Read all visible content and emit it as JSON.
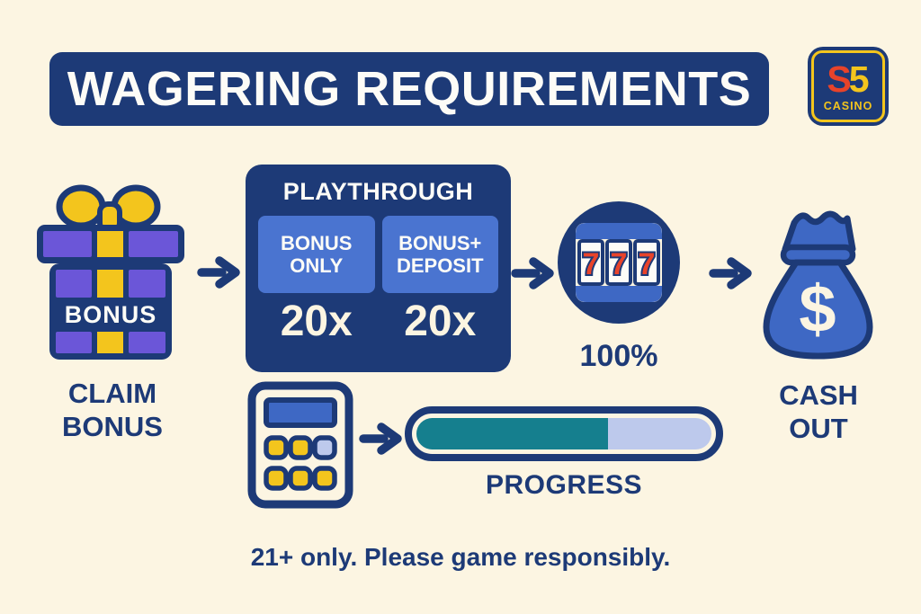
{
  "header": {
    "title": "WAGERING REQUIREMENTS"
  },
  "logo": {
    "s": "S",
    "five": "5",
    "casino": "CASINO"
  },
  "flow": {
    "claim": {
      "gift_label": "BONUS",
      "caption": [
        "CLAIM",
        "BONUS"
      ]
    },
    "playthrough": {
      "title": "PLAYTHROUGH",
      "columns": [
        {
          "header": "BONUS ONLY",
          "value": "20x"
        },
        {
          "header": "BONUS+ DEPOSIT",
          "value": "20x"
        }
      ]
    },
    "slot": {
      "reels": [
        "7",
        "7",
        "7"
      ],
      "caption": "100%"
    },
    "cashout": {
      "symbol": "$",
      "caption": [
        "CASH",
        "OUT"
      ]
    }
  },
  "progress": {
    "label": "PROGRESS",
    "percent": 65
  },
  "footer": {
    "disclaimer": "21+ only. Please game responsibly."
  },
  "icons": {
    "logo": "s5-casino-logo",
    "gift": "gift-icon",
    "arrow": "arrow-right-icon",
    "slot": "slot-machine-icon",
    "money_bag": "money-bag-icon",
    "calculator": "calculator-icon"
  },
  "colors": {
    "background": "#FCF5E2",
    "navy": "#1D3A77",
    "blue": "#3E68C4",
    "light_blue_cell": "#4A74D0",
    "purple": "#6B56D8",
    "yellow": "#F3C51D",
    "red": "#E8432A",
    "teal": "#157F8E",
    "periwinkle": "#BDC9EC",
    "cream": "#FCF5E2",
    "white": "#FDFCF7"
  }
}
